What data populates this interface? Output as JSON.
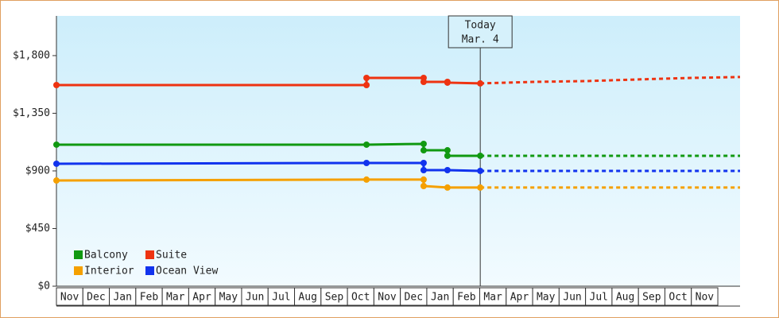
{
  "chart_data": {
    "type": "line",
    "categories": [
      "Nov",
      "Dec",
      "Jan",
      "Feb",
      "Mar",
      "Apr",
      "May",
      "Jun",
      "Jul",
      "Aug",
      "Sep",
      "Oct",
      "Nov",
      "Dec",
      "Jan",
      "Feb",
      "Mar",
      "Apr",
      "May",
      "Jun",
      "Jul",
      "Aug",
      "Sep",
      "Oct",
      "Nov"
    ],
    "xlim": [
      0,
      25.84
    ],
    "ylim": [
      0,
      2110
    ],
    "yticks": [
      {
        "value": 0,
        "label": "$0"
      },
      {
        "value": 450,
        "label": "$450"
      },
      {
        "value": 900,
        "label": "$900"
      },
      {
        "value": 1350,
        "label": "$1,350"
      },
      {
        "value": 1800,
        "label": "$1,800"
      }
    ],
    "today": {
      "x": 16.02,
      "label": "Today",
      "date": "Mar. 4"
    },
    "series": [
      {
        "name": "Balcony",
        "color": "#119911",
        "x": [
          0,
          11.72,
          13.88,
          13.88,
          14.78,
          14.78,
          16.02
        ],
        "values": [
          1105,
          1105,
          1111,
          1061,
          1061,
          1018,
          1018
        ],
        "forecast": {
          "x": [
            16.02,
            25.84
          ],
          "values": [
            1018,
            1018
          ]
        }
      },
      {
        "name": "Suite",
        "color": "#ee3311",
        "x": [
          0,
          11.72,
          11.72,
          13.88,
          13.88,
          14.78,
          14.78,
          16.02
        ],
        "values": [
          1570,
          1570,
          1626,
          1626,
          1595,
          1595,
          1589,
          1583
        ],
        "forecast": {
          "x": [
            16.02,
            18,
            20,
            22,
            24,
            25.84
          ],
          "values": [
            1583,
            1595,
            1601,
            1614,
            1626,
            1633
          ]
        }
      },
      {
        "name": "Interior",
        "color": "#f5a000",
        "x": [
          0,
          11.72,
          13.88,
          13.88,
          14.78,
          16.02
        ],
        "values": [
          825,
          832,
          832,
          782,
          770,
          770
        ],
        "forecast": {
          "x": [
            16.02,
            25.84
          ],
          "values": [
            770,
            770
          ]
        }
      },
      {
        "name": "Ocean View",
        "color": "#1133ee",
        "x": [
          0,
          11.72,
          13.88,
          13.88,
          14.78,
          16.02
        ],
        "values": [
          956,
          962,
          962,
          906,
          906,
          900
        ],
        "forecast": {
          "x": [
            16.02,
            25.84
          ],
          "values": [
            900,
            900
          ]
        }
      }
    ]
  }
}
